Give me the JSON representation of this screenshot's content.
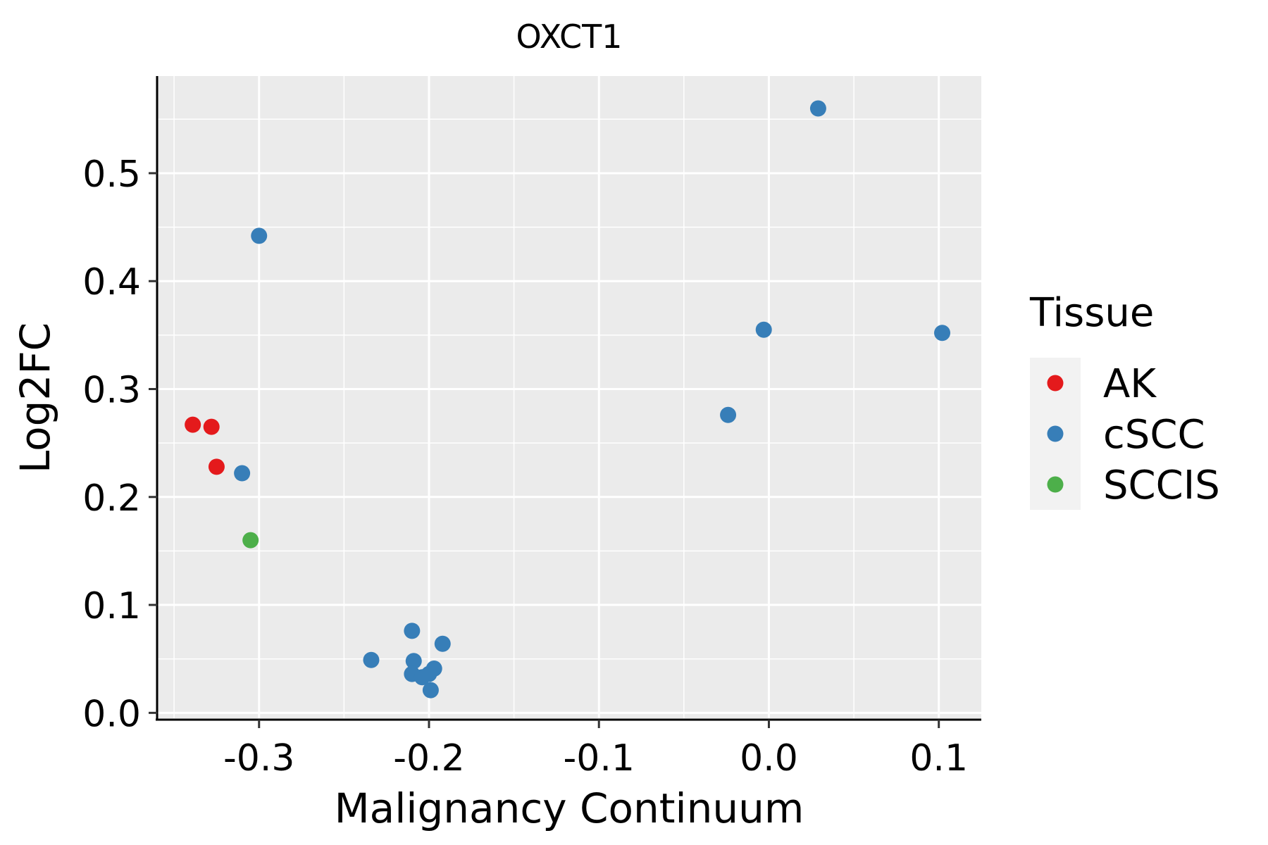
{
  "chart_data": {
    "type": "scatter",
    "title": "OXCT1",
    "xlabel": "Malignancy Continuum",
    "ylabel": "Log2FC",
    "xlim": [
      -0.36,
      0.125
    ],
    "ylim": [
      -0.005,
      0.59
    ],
    "x_ticks": [
      -0.3,
      -0.2,
      -0.1,
      0.0,
      0.1
    ],
    "x_tick_labels": [
      "-0.3",
      "-0.2",
      "-0.1",
      "0.0",
      "0.1"
    ],
    "y_ticks": [
      0.0,
      0.1,
      0.2,
      0.3,
      0.4,
      0.5
    ],
    "y_tick_labels": [
      "0.0",
      "0.1",
      "0.2",
      "0.3",
      "0.4",
      "0.5"
    ],
    "grid": true,
    "legend": {
      "title": "Tissue",
      "position": "right",
      "items": [
        {
          "label": "AK",
          "color": "#E41A1C"
        },
        {
          "label": "cSCC",
          "color": "#377EB8"
        },
        {
          "label": "SCCIS",
          "color": "#4DAF4A"
        }
      ]
    },
    "series": [
      {
        "name": "AK",
        "color": "#E41A1C",
        "points": [
          [
            -0.339,
            0.267
          ],
          [
            -0.328,
            0.265
          ],
          [
            -0.325,
            0.228
          ]
        ]
      },
      {
        "name": "cSCC",
        "color": "#377EB8",
        "points": [
          [
            0.029,
            0.56
          ],
          [
            -0.3,
            0.442
          ],
          [
            -0.003,
            0.355
          ],
          [
            0.102,
            0.352
          ],
          [
            -0.024,
            0.276
          ],
          [
            -0.31,
            0.222
          ],
          [
            -0.21,
            0.076
          ],
          [
            -0.192,
            0.064
          ],
          [
            -0.234,
            0.049
          ],
          [
            -0.209,
            0.048
          ],
          [
            -0.197,
            0.041
          ],
          [
            -0.21,
            0.036
          ],
          [
            -0.204,
            0.033
          ],
          [
            -0.2,
            0.036
          ],
          [
            -0.199,
            0.021
          ]
        ]
      },
      {
        "name": "SCCIS",
        "color": "#4DAF4A",
        "points": [
          [
            -0.305,
            0.16
          ]
        ]
      }
    ]
  }
}
